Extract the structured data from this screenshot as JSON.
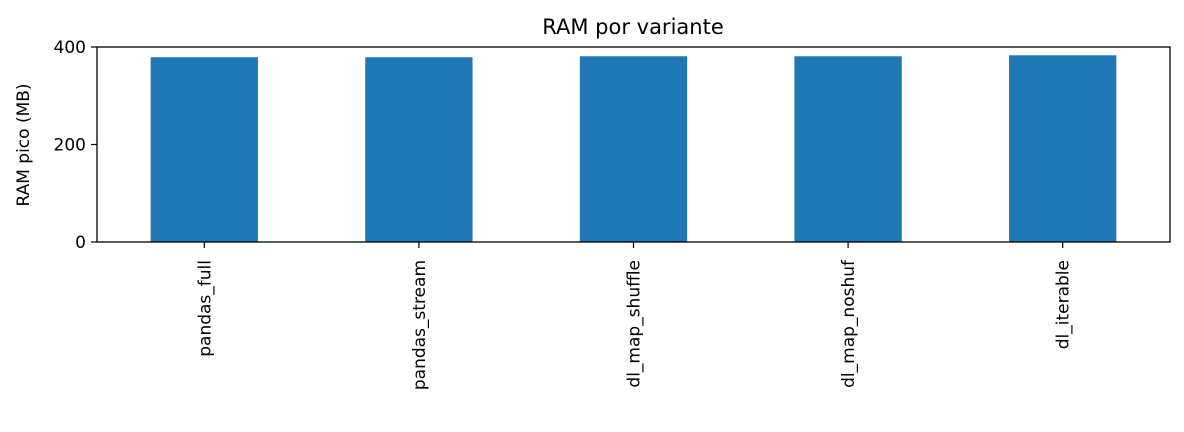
{
  "chart_data": {
    "type": "bar",
    "title": "RAM por variante",
    "xlabel": "",
    "ylabel": "RAM pico (MB)",
    "categories": [
      "pandas_full",
      "pandas_stream",
      "dl_map_shuffle",
      "dl_map_noshuf",
      "dl_iterable"
    ],
    "values": [
      379,
      379,
      381,
      381,
      383
    ],
    "ylim": [
      0,
      400
    ],
    "yticks": [
      0,
      200,
      400
    ],
    "bar_color": "#1f77b4",
    "grid": false,
    "legend": "none"
  }
}
